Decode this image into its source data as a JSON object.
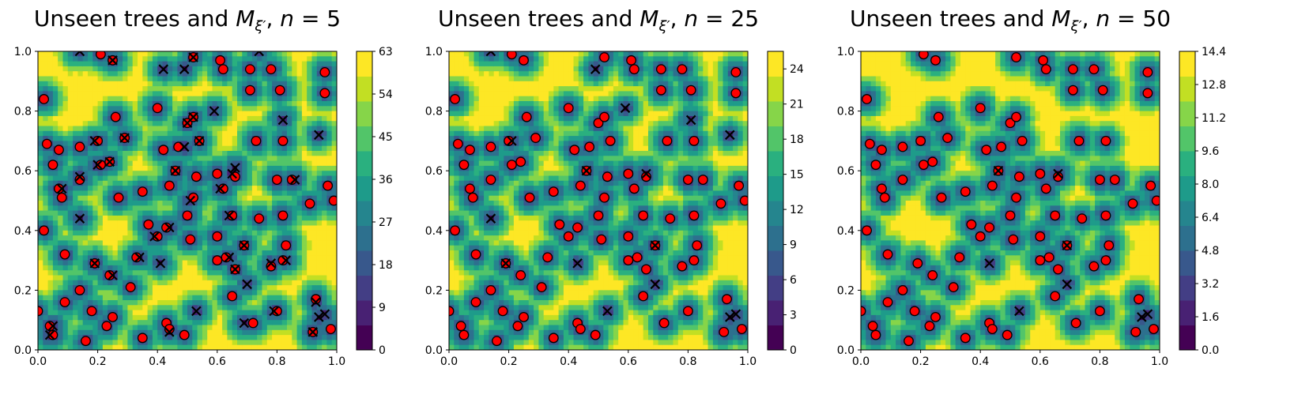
{
  "colormap": [
    "#440154",
    "#482173",
    "#433e85",
    "#38588c",
    "#2d708e",
    "#25858e",
    "#1e9b8a",
    "#2ab07f",
    "#52c569",
    "#86d549",
    "#c2df23",
    "#fde725"
  ],
  "marker_colors": {
    "observed_fill": "#ff0000",
    "observed_edge": "#000000",
    "unseen": "#000000"
  },
  "trees_observed": [
    [
      0.02,
      0.84
    ],
    [
      0.03,
      0.69
    ],
    [
      0.07,
      0.67
    ],
    [
      0.14,
      0.68
    ],
    [
      0.2,
      0.7
    ],
    [
      0.21,
      0.99
    ],
    [
      0.26,
      0.78
    ],
    [
      0.29,
      0.71
    ],
    [
      0.25,
      0.97
    ],
    [
      0.4,
      0.81
    ],
    [
      0.42,
      0.67
    ],
    [
      0.47,
      0.68
    ],
    [
      0.5,
      0.76
    ],
    [
      0.52,
      0.78
    ],
    [
      0.54,
      0.7
    ],
    [
      0.52,
      0.98
    ],
    [
      0.61,
      0.97
    ],
    [
      0.62,
      0.94
    ],
    [
      0.66,
      0.58
    ],
    [
      0.71,
      0.87
    ],
    [
      0.71,
      0.94
    ],
    [
      0.78,
      0.94
    ],
    [
      0.81,
      0.87
    ],
    [
      0.73,
      0.7
    ],
    [
      0.82,
      0.7
    ],
    [
      0.96,
      0.93
    ],
    [
      0.96,
      0.86
    ],
    [
      0.05,
      0.62
    ],
    [
      0.08,
      0.51
    ],
    [
      0.07,
      0.54
    ],
    [
      0.14,
      0.57
    ],
    [
      0.21,
      0.62
    ],
    [
      0.24,
      0.63
    ],
    [
      0.27,
      0.51
    ],
    [
      0.35,
      0.53
    ],
    [
      0.44,
      0.55
    ],
    [
      0.46,
      0.6
    ],
    [
      0.5,
      0.45
    ],
    [
      0.52,
      0.51
    ],
    [
      0.53,
      0.58
    ],
    [
      0.6,
      0.59
    ],
    [
      0.62,
      0.54
    ],
    [
      0.65,
      0.45
    ],
    [
      0.74,
      0.44
    ],
    [
      0.8,
      0.57
    ],
    [
      0.85,
      0.57
    ],
    [
      0.82,
      0.45
    ],
    [
      0.91,
      0.49
    ],
    [
      0.97,
      0.55
    ],
    [
      0.99,
      0.5
    ],
    [
      0.02,
      0.4
    ],
    [
      0.09,
      0.32
    ],
    [
      0.19,
      0.29
    ],
    [
      0.24,
      0.25
    ],
    [
      0.33,
      0.31
    ],
    [
      0.37,
      0.42
    ],
    [
      0.4,
      0.38
    ],
    [
      0.43,
      0.41
    ],
    [
      0.51,
      0.37
    ],
    [
      0.6,
      0.38
    ],
    [
      0.63,
      0.31
    ],
    [
      0.6,
      0.3
    ],
    [
      0.66,
      0.27
    ],
    [
      0.69,
      0.35
    ],
    [
      0.78,
      0.28
    ],
    [
      0.82,
      0.3
    ],
    [
      0.83,
      0.35
    ],
    [
      0.0,
      0.13
    ],
    [
      0.05,
      0.05
    ],
    [
      0.04,
      0.08
    ],
    [
      0.09,
      0.16
    ],
    [
      0.14,
      0.2
    ],
    [
      0.16,
      0.03
    ],
    [
      0.18,
      0.13
    ],
    [
      0.23,
      0.08
    ],
    [
      0.25,
      0.11
    ],
    [
      0.31,
      0.21
    ],
    [
      0.35,
      0.04
    ],
    [
      0.43,
      0.09
    ],
    [
      0.44,
      0.07
    ],
    [
      0.49,
      0.05
    ],
    [
      0.65,
      0.18
    ],
    [
      0.72,
      0.09
    ],
    [
      0.8,
      0.13
    ],
    [
      0.93,
      0.17
    ],
    [
      0.92,
      0.06
    ],
    [
      0.98,
      0.07
    ]
  ],
  "trees_unseen_n5": [
    [
      0.14,
      1.0
    ],
    [
      0.25,
      0.97
    ],
    [
      0.42,
      0.94
    ],
    [
      0.49,
      0.94
    ],
    [
      0.52,
      0.98
    ],
    [
      0.74,
      1.0
    ],
    [
      0.19,
      0.7
    ],
    [
      0.29,
      0.71
    ],
    [
      0.49,
      0.68
    ],
    [
      0.5,
      0.76
    ],
    [
      0.52,
      0.78
    ],
    [
      0.54,
      0.7
    ],
    [
      0.59,
      0.8
    ],
    [
      0.82,
      0.77
    ],
    [
      0.94,
      0.72
    ],
    [
      0.08,
      0.54
    ],
    [
      0.14,
      0.58
    ],
    [
      0.2,
      0.62
    ],
    [
      0.24,
      0.63
    ],
    [
      0.46,
      0.6
    ],
    [
      0.51,
      0.5
    ],
    [
      0.61,
      0.54
    ],
    [
      0.65,
      0.59
    ],
    [
      0.66,
      0.61
    ],
    [
      0.86,
      0.57
    ],
    [
      0.14,
      0.44
    ],
    [
      0.39,
      0.38
    ],
    [
      0.44,
      0.41
    ],
    [
      0.64,
      0.45
    ],
    [
      0.19,
      0.29
    ],
    [
      0.25,
      0.25
    ],
    [
      0.34,
      0.31
    ],
    [
      0.41,
      0.29
    ],
    [
      0.64,
      0.31
    ],
    [
      0.66,
      0.27
    ],
    [
      0.69,
      0.35
    ],
    [
      0.7,
      0.22
    ],
    [
      0.78,
      0.29
    ],
    [
      0.83,
      0.3
    ],
    [
      0.05,
      0.08
    ],
    [
      0.04,
      0.05
    ],
    [
      0.44,
      0.06
    ],
    [
      0.53,
      0.13
    ],
    [
      0.69,
      0.09
    ],
    [
      0.79,
      0.13
    ],
    [
      0.93,
      0.16
    ],
    [
      0.92,
      0.06
    ],
    [
      0.94,
      0.11
    ],
    [
      0.96,
      0.12
    ]
  ],
  "trees_unseen_n25": [
    [
      0.14,
      1.0
    ],
    [
      0.49,
      0.94
    ],
    [
      0.59,
      0.81
    ],
    [
      0.81,
      0.77
    ],
    [
      0.94,
      0.72
    ],
    [
      0.21,
      0.7
    ],
    [
      0.46,
      0.6
    ],
    [
      0.66,
      0.59
    ],
    [
      0.14,
      0.44
    ],
    [
      0.43,
      0.29
    ],
    [
      0.19,
      0.29
    ],
    [
      0.69,
      0.35
    ],
    [
      0.69,
      0.22
    ],
    [
      0.53,
      0.13
    ],
    [
      0.94,
      0.11
    ],
    [
      0.96,
      0.12
    ]
  ],
  "trees_unseen_n50": [
    [
      0.46,
      0.6
    ],
    [
      0.66,
      0.59
    ],
    [
      0.43,
      0.29
    ],
    [
      0.69,
      0.35
    ],
    [
      0.69,
      0.22
    ],
    [
      0.53,
      0.13
    ],
    [
      0.94,
      0.11
    ],
    [
      0.96,
      0.12
    ]
  ],
  "chart_data": [
    {
      "type": "heatmap",
      "title_main": "Unseen trees and ",
      "title_italic": "M",
      "title_sub": "ξ′",
      "title_tail": ", ",
      "title_n": "n",
      "title_value": "= 5",
      "xlim": [
        0,
        1
      ],
      "ylim": [
        0,
        1
      ],
      "xticks": [
        "0.0",
        "0.2",
        "0.4",
        "0.6",
        "0.8",
        "1.0"
      ],
      "yticks": [
        "0.0",
        "0.2",
        "0.4",
        "0.6",
        "0.8",
        "1.0"
      ],
      "colorbar_ticks": [
        "0",
        "9",
        "18",
        "27",
        "36",
        "45",
        "54",
        "63"
      ],
      "colorbar_range": [
        0,
        63
      ],
      "max_value": 63,
      "unseen_key": "trees_unseen_n5"
    },
    {
      "type": "heatmap",
      "title_main": "Unseen trees and ",
      "title_italic": "M",
      "title_sub": "ξ′",
      "title_tail": ", ",
      "title_n": "n",
      "title_value": "= 25",
      "xlim": [
        0,
        1
      ],
      "ylim": [
        0,
        1
      ],
      "xticks": [
        "0.0",
        "0.2",
        "0.4",
        "0.6",
        "0.8",
        "1.0"
      ],
      "yticks": [
        "0.0",
        "0.2",
        "0.4",
        "0.6",
        "0.8",
        "1.0"
      ],
      "colorbar_ticks": [
        "0",
        "3",
        "6",
        "9",
        "12",
        "15",
        "18",
        "21",
        "24"
      ],
      "colorbar_range": [
        0,
        25.5
      ],
      "max_value": 25.5,
      "unseen_key": "trees_unseen_n25"
    },
    {
      "type": "heatmap",
      "title_main": "Unseen trees and ",
      "title_italic": "M",
      "title_sub": "ξ′",
      "title_tail": ", ",
      "title_n": "n",
      "title_value": "= 50",
      "xlim": [
        0,
        1
      ],
      "ylim": [
        0,
        1
      ],
      "xticks": [
        "0.0",
        "0.2",
        "0.4",
        "0.6",
        "0.8",
        "1.0"
      ],
      "yticks": [
        "0.0",
        "0.2",
        "0.4",
        "0.6",
        "0.8",
        "1.0"
      ],
      "colorbar_ticks": [
        "0.0",
        "1.6",
        "3.2",
        "4.8",
        "6.4",
        "8.0",
        "9.6",
        "11.2",
        "12.8",
        "14.4"
      ],
      "colorbar_range": [
        0,
        14.4
      ],
      "max_value": 14.4,
      "unseen_key": "trees_unseen_n50"
    }
  ]
}
